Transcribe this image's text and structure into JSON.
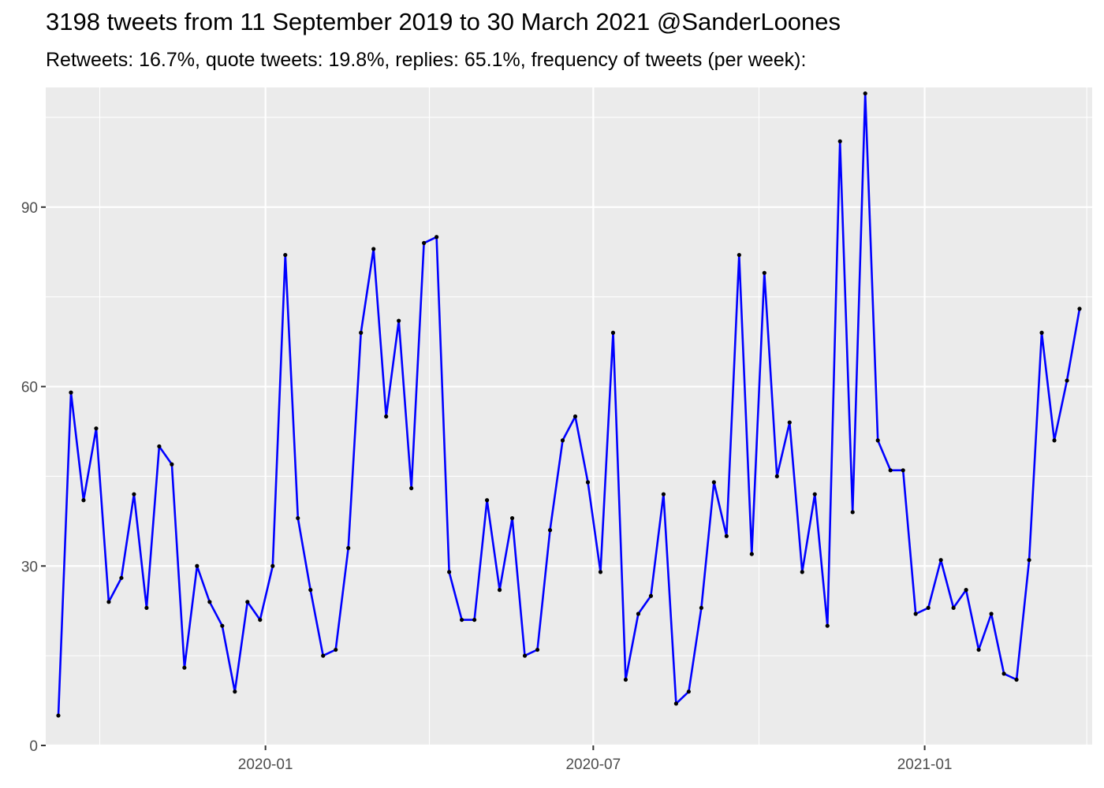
{
  "chart_data": {
    "type": "line",
    "title": "3198 tweets from 11 September 2019 to 30 March 2021 @SanderLoones",
    "subtitle": "Retweets: 16.7%, quote tweets: 19.8%, replies: 65.1%, frequency of tweets (per week):",
    "xlabel": "",
    "ylabel": "",
    "x_axis": {
      "type": "date",
      "range": [
        "2019-09-01",
        "2021-04-04"
      ],
      "ticks": [
        "2020-01-01",
        "2020-07-01",
        "2021-01-01"
      ],
      "tick_labels": [
        "2020-01",
        "2020-07",
        "2021-01"
      ],
      "minor_ticks": [
        "2019-10-01",
        "2020-04-01",
        "2020-10-01",
        "2021-04-01"
      ]
    },
    "y_axis": {
      "range": [
        0,
        110
      ],
      "ticks": [
        0,
        30,
        60,
        90
      ],
      "tick_labels": [
        "0",
        "30",
        "60",
        "90"
      ],
      "minor_ticks": [
        15,
        45,
        75,
        105
      ]
    },
    "grid": true,
    "legend": "none",
    "colors": {
      "line": "#0000ff",
      "points": "#000000",
      "panel": "#ebebeb",
      "grid": "#ffffff"
    },
    "series": [
      {
        "x": [
          "2019-09-08",
          "2019-09-15",
          "2019-09-22",
          "2019-09-29",
          "2019-10-06",
          "2019-10-13",
          "2019-10-20",
          "2019-10-27",
          "2019-11-03",
          "2019-11-10",
          "2019-11-17",
          "2019-11-24",
          "2019-12-01",
          "2019-12-08",
          "2019-12-15",
          "2019-12-22",
          "2019-12-29",
          "2020-01-05",
          "2020-01-12",
          "2020-01-19",
          "2020-01-26",
          "2020-02-02",
          "2020-02-09",
          "2020-02-16",
          "2020-02-23",
          "2020-03-01",
          "2020-03-08",
          "2020-03-15",
          "2020-03-22",
          "2020-03-29",
          "2020-04-05",
          "2020-04-12",
          "2020-04-19",
          "2020-04-26",
          "2020-05-03",
          "2020-05-10",
          "2020-05-17",
          "2020-05-24",
          "2020-05-31",
          "2020-06-07",
          "2020-06-14",
          "2020-06-21",
          "2020-06-28",
          "2020-07-05",
          "2020-07-12",
          "2020-07-19",
          "2020-07-26",
          "2020-08-02",
          "2020-08-09",
          "2020-08-16",
          "2020-08-23",
          "2020-08-30",
          "2020-09-06",
          "2020-09-13",
          "2020-09-20",
          "2020-09-27",
          "2020-10-04",
          "2020-10-11",
          "2020-10-18",
          "2020-10-25",
          "2020-11-01",
          "2020-11-08",
          "2020-11-15",
          "2020-11-22",
          "2020-11-29",
          "2020-12-06",
          "2020-12-13",
          "2020-12-20",
          "2020-12-27",
          "2021-01-03",
          "2021-01-10",
          "2021-01-17",
          "2021-01-24",
          "2021-01-31",
          "2021-02-07",
          "2021-02-14",
          "2021-02-21",
          "2021-02-28",
          "2021-03-07",
          "2021-03-14",
          "2021-03-21",
          "2021-03-28"
        ],
        "y": [
          5,
          59,
          41,
          53,
          24,
          28,
          42,
          23,
          50,
          47,
          13,
          30,
          24,
          20,
          9,
          24,
          21,
          30,
          82,
          38,
          26,
          15,
          16,
          33,
          69,
          83,
          55,
          71,
          43,
          84,
          85,
          29,
          21,
          21,
          41,
          26,
          38,
          15,
          16,
          36,
          51,
          55,
          44,
          29,
          69,
          11,
          22,
          25,
          42,
          7,
          9,
          23,
          44,
          35,
          82,
          32,
          79,
          45,
          54,
          29,
          42,
          20,
          101,
          39,
          109,
          51,
          46,
          46,
          22,
          23,
          31,
          23,
          26,
          16,
          22,
          12,
          11,
          31,
          69,
          51,
          61,
          73
        ]
      }
    ]
  }
}
